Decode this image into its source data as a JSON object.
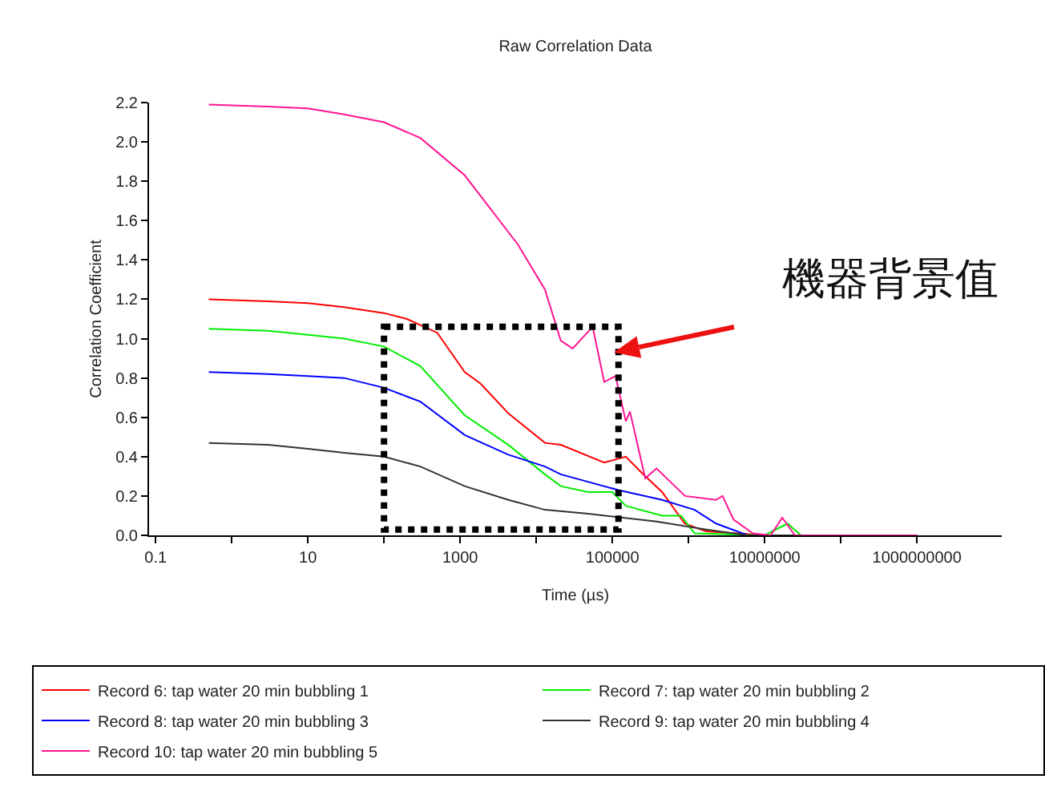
{
  "chart_data": {
    "type": "line",
    "title": "Raw Correlation Data",
    "xlabel": "Time (µs)",
    "ylabel": "Correlation Coefficient",
    "log": "x",
    "grid": false,
    "legend": "bottom",
    "marker": "none",
    "line_style": "solid",
    "xlim": [
      0.082,
      13000000000
    ],
    "xticks": [
      0.1,
      {
        "value": 1,
        "label": null
      },
      10,
      {
        "value": 100,
        "label": null
      },
      1000,
      {
        "value": 10000,
        "label": null
      },
      100000,
      {
        "value": 1000000,
        "label": null
      },
      10000000,
      {
        "value": 100000000,
        "label": null
      },
      1000000000
    ],
    "ylim": [
      0,
      2.2
    ],
    "yticks": [
      {
        "value": 0,
        "label": "0.0"
      },
      {
        "value": 0.2,
        "label": "0.2"
      },
      {
        "value": 0.4,
        "label": "0.4"
      },
      {
        "value": 0.6,
        "label": "0.6"
      },
      {
        "value": 0.8,
        "label": "0.8"
      },
      {
        "value": 1,
        "label": "1.0"
      },
      {
        "value": 1.2,
        "label": "1.2"
      },
      {
        "value": 1.4,
        "label": "1.4"
      },
      {
        "value": 1.6,
        "label": "1.6"
      },
      {
        "value": 1.8,
        "label": "1.8"
      },
      {
        "value": 2,
        "label": "2.0"
      },
      {
        "value": 2.2,
        "label": "2.2"
      }
    ],
    "annotations": [
      "機器背景值"
    ],
    "series": [
      {
        "name": "Record 6: tap water 20 min bubbling 1",
        "color": "#ff0000",
        "x": [
          0.5,
          3,
          10,
          30,
          100,
          200,
          500,
          1150,
          1870,
          4300,
          13000,
          21000,
          78000,
          150000,
          240000,
          450000,
          890000,
          1700000,
          11000000,
          1000000000
        ],
        "values": [
          1.2,
          1.19,
          1.18,
          1.16,
          1.13,
          1.1,
          1.03,
          0.83,
          0.77,
          0.62,
          0.47,
          0.46,
          0.37,
          0.4,
          0.32,
          0.22,
          0.06,
          0.02,
          0,
          0
        ]
      },
      {
        "name": "Record 7: tap water 20 min bubbling 2",
        "color": "#00ee00",
        "x": [
          0.5,
          3,
          10,
          30,
          100,
          300,
          1150,
          4300,
          13000,
          21000,
          48000,
          100000,
          150000,
          450000,
          800000,
          1200000,
          10000000,
          20000000,
          30000000,
          1000000000
        ],
        "values": [
          1.05,
          1.04,
          1.02,
          1,
          0.96,
          0.86,
          0.61,
          0.46,
          0.31,
          0.25,
          0.22,
          0.22,
          0.15,
          0.1,
          0.1,
          0.01,
          0,
          0.06,
          0,
          0
        ]
      },
      {
        "name": "Record 8: tap water 20 min bubbling 3",
        "color": "#0000ff",
        "x": [
          0.5,
          3,
          10,
          30,
          100,
          300,
          1150,
          4300,
          13000,
          21000,
          120000,
          450000,
          1200000,
          2300000,
          6000000,
          1000000000
        ],
        "values": [
          0.83,
          0.82,
          0.81,
          0.8,
          0.75,
          0.68,
          0.51,
          0.41,
          0.35,
          0.31,
          0.23,
          0.18,
          0.13,
          0.06,
          0,
          0
        ]
      },
      {
        "name": "Record 9: tap water 20 min bubbling 4",
        "color": "#333333",
        "x": [
          0.5,
          3,
          10,
          30,
          100,
          300,
          1150,
          4300,
          13000,
          48000,
          380000,
          1700000,
          6000000,
          1000000000
        ],
        "values": [
          0.47,
          0.46,
          0.44,
          0.42,
          0.4,
          0.35,
          0.25,
          0.18,
          0.13,
          0.11,
          0.07,
          0.03,
          0,
          0
        ]
      },
      {
        "name": "Record 10: tap water 20 min bubbling 5",
        "color": "#ff1493",
        "x": [
          0.5,
          3,
          10,
          30,
          100,
          300,
          1150,
          5700,
          13000,
          21000,
          30000,
          55000,
          78000,
          110000,
          150000,
          170000,
          270000,
          380000,
          900000,
          2300000,
          2800000,
          3900000,
          7000000,
          12000000,
          17000000,
          25000000,
          1000000000
        ],
        "values": [
          2.19,
          2.18,
          2.17,
          2.14,
          2.1,
          2.02,
          1.83,
          1.48,
          1.25,
          0.99,
          0.95,
          1.06,
          0.78,
          0.81,
          0.58,
          0.63,
          0.29,
          0.34,
          0.2,
          0.18,
          0.2,
          0.08,
          0.01,
          0,
          0.09,
          0,
          0
        ]
      }
    ]
  }
}
